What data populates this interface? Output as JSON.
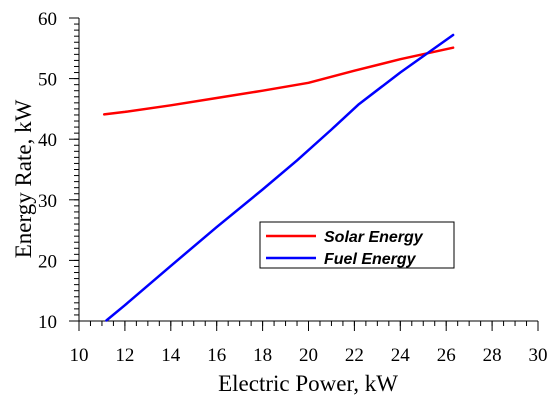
{
  "chart_data": {
    "type": "line",
    "title": "",
    "xlabel": "Electric Power, kW",
    "ylabel": "Energy Rate, kW",
    "xlim": [
      10,
      30
    ],
    "ylim": [
      10,
      60
    ],
    "x_ticks": [
      10,
      12,
      14,
      16,
      18,
      20,
      22,
      24,
      26,
      28,
      30
    ],
    "y_ticks": [
      10,
      20,
      30,
      40,
      50,
      60
    ],
    "grid": false,
    "legend_position": "center-right",
    "series": [
      {
        "name": "Solar Energy",
        "color": "#ff0000",
        "x": [
          11.1,
          12,
          14,
          16,
          18,
          20,
          22,
          24,
          26.3
        ],
        "y": [
          44.1,
          44.5,
          45.6,
          46.8,
          48.0,
          49.3,
          51.3,
          53.2,
          55.1
        ]
      },
      {
        "name": "Fuel Energy",
        "color": "#0000ff",
        "x": [
          11.2,
          12,
          14,
          16,
          18,
          19.5,
          21,
          22.2,
          24,
          26.3
        ],
        "y": [
          10.1,
          12.6,
          19.1,
          25.5,
          31.7,
          36.5,
          41.6,
          45.8,
          51.0,
          57.2
        ]
      }
    ]
  }
}
